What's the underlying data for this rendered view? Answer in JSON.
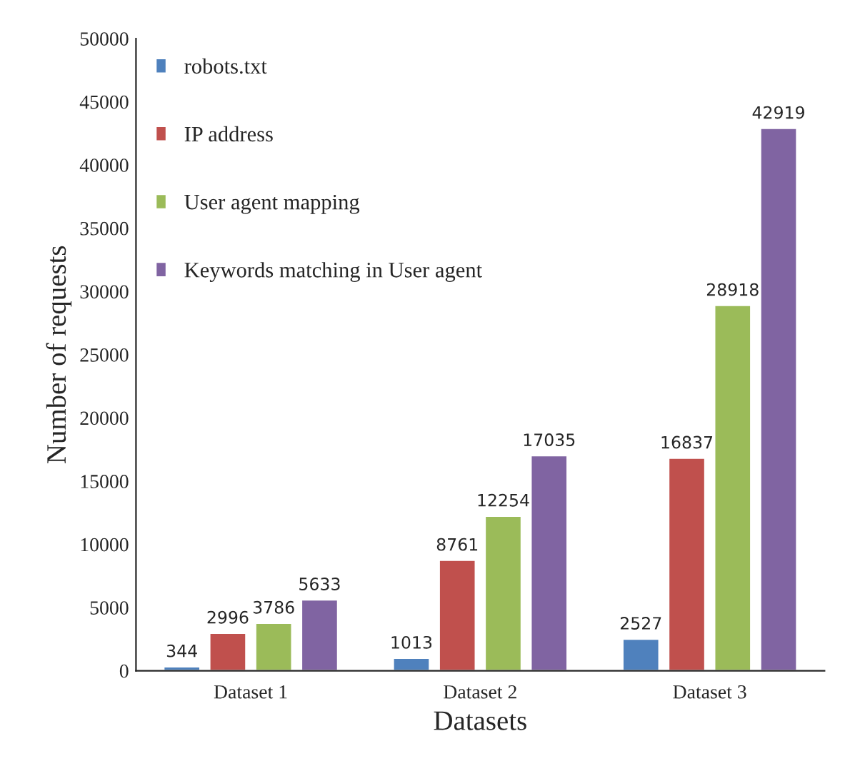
{
  "chart_data": {
    "type": "bar",
    "xlabel": "Datasets",
    "ylabel": "Number of requests",
    "categories": [
      "Dataset 1",
      "Dataset 2",
      "Dataset 3"
    ],
    "series": [
      {
        "name": "robots.txt",
        "color": "#4f81bd",
        "values": [
          344,
          1013,
          2527
        ]
      },
      {
        "name": "IP address",
        "color": "#c0504d",
        "values": [
          2996,
          8761,
          16837
        ]
      },
      {
        "name": "User agent mapping",
        "color": "#9bbb59",
        "values": [
          3786,
          12254,
          28918
        ]
      },
      {
        "name": "Keywords matching in User agent",
        "color": "#8064a2",
        "values": [
          5633,
          17035,
          42919
        ]
      }
    ],
    "ylim": [
      0,
      50000
    ],
    "yticks": [
      0,
      5000,
      10000,
      15000,
      20000,
      25000,
      30000,
      35000,
      40000,
      45000,
      50000
    ],
    "data_labels": true,
    "legend": "top left",
    "grid": false
  }
}
